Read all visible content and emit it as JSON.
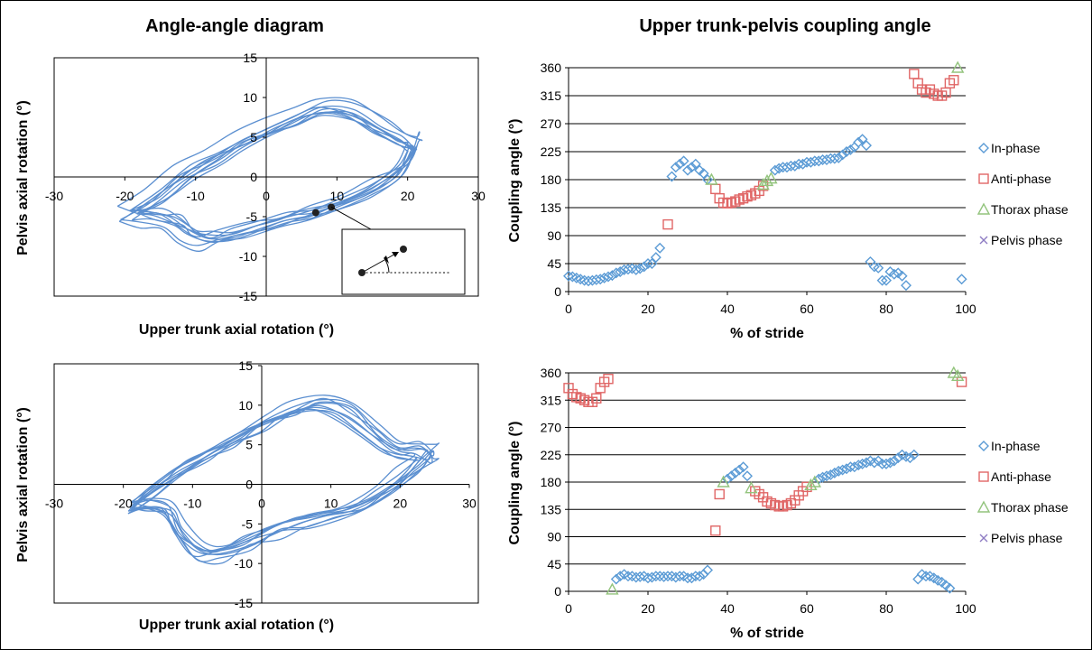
{
  "panel_titles": {
    "left": "Angle-angle diagram",
    "right": "Upper trunk-pelvis coupling angle"
  },
  "chart_data": [
    {
      "id": "aa_top",
      "type": "line",
      "xlabel": "Upper trunk axial rotation (°)",
      "ylabel": "Pelvis axial rotation (°)",
      "xlim": [
        -30,
        30
      ],
      "ylim": [
        -15,
        15
      ],
      "xticks": [
        -30,
        -20,
        -10,
        0,
        10,
        20,
        30
      ],
      "yticks": [
        -15,
        -10,
        -5,
        0,
        5,
        10,
        15
      ],
      "grid": false,
      "loop": {
        "upper": [
          [
            -20,
            -4.5
          ],
          [
            -16,
            -2.5
          ],
          [
            -12,
            0.5
          ],
          [
            -8,
            2.5
          ],
          [
            -4,
            4.5
          ],
          [
            0,
            6
          ],
          [
            4,
            7.5
          ],
          [
            8,
            9
          ],
          [
            12,
            8.5
          ],
          [
            16,
            6.5
          ],
          [
            19,
            5
          ],
          [
            21,
            4
          ]
        ],
        "lower": [
          [
            21,
            4
          ],
          [
            19,
            1
          ],
          [
            15,
            -1.5
          ],
          [
            10,
            -3.5
          ],
          [
            6,
            -4.5
          ],
          [
            2,
            -5.5
          ],
          [
            -2,
            -6.5
          ],
          [
            -6,
            -7.5
          ],
          [
            -9,
            -8
          ],
          [
            -12,
            -7
          ],
          [
            -14,
            -5.5
          ],
          [
            -17,
            -5
          ]
        ],
        "cycles": 10
      },
      "inset": {
        "points": [
          [
            7,
            -4.5
          ],
          [
            9.2,
            -3.8
          ]
        ]
      }
    },
    {
      "id": "aa_bottom",
      "type": "line",
      "xlabel": "Upper trunk axial rotation (°)",
      "ylabel": "Pelvis axial rotation (°)",
      "xlim": [
        -30,
        30
      ],
      "ylim": [
        -15,
        15
      ],
      "xticks": [
        -30,
        -20,
        -10,
        0,
        10,
        20,
        30
      ],
      "yticks": [
        -15,
        -10,
        -5,
        0,
        5,
        10,
        15
      ],
      "grid": false,
      "loop": {
        "upper": [
          [
            -19,
            -2.5
          ],
          [
            -16,
            -0.5
          ],
          [
            -12,
            2
          ],
          [
            -8,
            4
          ],
          [
            -4,
            6
          ],
          [
            0,
            8
          ],
          [
            4,
            9.5
          ],
          [
            8,
            10.5
          ],
          [
            12,
            9.5
          ],
          [
            16,
            7
          ],
          [
            19,
            5
          ],
          [
            22,
            4.5
          ],
          [
            24,
            4
          ]
        ],
        "lower": [
          [
            24,
            4
          ],
          [
            22,
            2
          ],
          [
            18,
            -0.5
          ],
          [
            14,
            -2.5
          ],
          [
            10,
            -3.5
          ],
          [
            6,
            -4.5
          ],
          [
            2,
            -5.5
          ],
          [
            -2,
            -7
          ],
          [
            -6,
            -8.5
          ],
          [
            -9,
            -8.5
          ],
          [
            -12,
            -6
          ],
          [
            -14,
            -3
          ],
          [
            -17,
            -2.5
          ]
        ],
        "cycles": 10
      }
    },
    {
      "id": "cp_top",
      "type": "scatter",
      "xlabel": "% of stride",
      "ylabel": "Coupling angle (°)",
      "xlim": [
        0,
        100
      ],
      "ylim": [
        0,
        360
      ],
      "xticks": [
        0,
        20,
        40,
        60,
        80,
        100
      ],
      "yticks": [
        0,
        45,
        90,
        135,
        180,
        225,
        270,
        315,
        360
      ],
      "grid": "horizontal",
      "legend": "right",
      "series": [
        {
          "name": "In-phase",
          "color": "#5b9bd5",
          "marker": "diamond",
          "x": [
            0,
            1,
            2,
            3,
            4,
            5,
            6,
            7,
            8,
            9,
            10,
            11,
            12,
            13,
            14,
            15,
            16,
            17,
            18,
            19,
            20,
            21,
            22,
            23,
            26,
            27,
            28,
            29,
            30,
            31,
            32,
            33,
            34,
            35,
            52,
            53,
            54,
            55,
            56,
            57,
            58,
            59,
            60,
            61,
            62,
            63,
            64,
            65,
            66,
            67,
            68,
            69,
            70,
            71,
            72,
            73,
            74,
            75,
            76,
            77,
            78,
            79,
            80,
            81,
            82,
            83,
            84,
            85,
            99
          ],
          "y": [
            25,
            24,
            22,
            20,
            18,
            17,
            18,
            19,
            20,
            22,
            24,
            26,
            30,
            32,
            35,
            36,
            37,
            35,
            37,
            40,
            45,
            45,
            55,
            70,
            185,
            200,
            205,
            210,
            195,
            200,
            205,
            195,
            190,
            180,
            195,
            198,
            200,
            200,
            202,
            202,
            205,
            205,
            208,
            208,
            210,
            210,
            212,
            212,
            214,
            214,
            215,
            220,
            225,
            228,
            232,
            240,
            245,
            235,
            48,
            40,
            38,
            18,
            18,
            32,
            28,
            30,
            25,
            10,
            20
          ]
        },
        {
          "name": "Anti-phase",
          "color": "#e06666",
          "marker": "square",
          "x": [
            25,
            37,
            38,
            39,
            40,
            41,
            42,
            43,
            44,
            45,
            46,
            47,
            48,
            49,
            87,
            88,
            89,
            90,
            91,
            92,
            93,
            94,
            95,
            96,
            97
          ],
          "y": [
            108,
            165,
            150,
            143,
            142,
            143,
            145,
            148,
            150,
            153,
            155,
            158,
            162,
            170,
            350,
            335,
            325,
            320,
            325,
            318,
            315,
            315,
            320,
            335,
            340
          ]
        },
        {
          "name": "Thorax phase",
          "color": "#93c47d",
          "marker": "triangle",
          "x": [
            36,
            49,
            50,
            51,
            98
          ],
          "y": [
            180,
            172,
            178,
            182,
            360
          ]
        },
        {
          "name": "Pelvis phase",
          "color": "#8e7cc3",
          "marker": "x",
          "x": [],
          "y": []
        }
      ]
    },
    {
      "id": "cp_bottom",
      "type": "scatter",
      "xlabel": "% of stride",
      "ylabel": "Coupling angle (°)",
      "xlim": [
        0,
        100
      ],
      "ylim": [
        0,
        360
      ],
      "xticks": [
        0,
        20,
        40,
        60,
        80,
        100
      ],
      "yticks": [
        0,
        45,
        90,
        135,
        180,
        225,
        270,
        315,
        360
      ],
      "grid": "horizontal",
      "legend": "right",
      "series": [
        {
          "name": "In-phase",
          "color": "#5b9bd5",
          "marker": "diamond",
          "x": [
            12,
            13,
            14,
            15,
            16,
            17,
            18,
            19,
            20,
            21,
            22,
            23,
            24,
            25,
            26,
            27,
            28,
            29,
            30,
            31,
            32,
            33,
            34,
            35,
            40,
            41,
            42,
            43,
            44,
            45,
            63,
            64,
            65,
            66,
            67,
            68,
            69,
            70,
            71,
            72,
            73,
            74,
            75,
            76,
            77,
            78,
            79,
            80,
            81,
            82,
            83,
            84,
            85,
            86,
            87,
            88,
            89,
            90,
            91,
            92,
            93,
            94,
            95,
            96
          ],
          "y": [
            20,
            25,
            28,
            25,
            25,
            23,
            24,
            25,
            22,
            23,
            25,
            25,
            24,
            25,
            25,
            23,
            25,
            25,
            22,
            22,
            25,
            25,
            28,
            35,
            185,
            190,
            195,
            200,
            205,
            190,
            185,
            188,
            190,
            192,
            195,
            198,
            200,
            202,
            205,
            205,
            208,
            210,
            212,
            215,
            212,
            215,
            210,
            210,
            212,
            215,
            220,
            225,
            222,
            220,
            225,
            20,
            28,
            25,
            25,
            22,
            18,
            15,
            10,
            5
          ]
        },
        {
          "name": "Anti-phase",
          "color": "#e06666",
          "marker": "square",
          "x": [
            0,
            1,
            2,
            3,
            4,
            5,
            6,
            7,
            8,
            9,
            10,
            37,
            38,
            47,
            48,
            49,
            50,
            51,
            52,
            53,
            54,
            55,
            56,
            57,
            58,
            59,
            60,
            99
          ],
          "y": [
            335,
            325,
            320,
            318,
            315,
            312,
            312,
            318,
            335,
            345,
            350,
            100,
            160,
            165,
            160,
            155,
            148,
            145,
            142,
            140,
            140,
            142,
            145,
            150,
            158,
            165,
            172,
            345
          ]
        },
        {
          "name": "Thorax phase",
          "color": "#93c47d",
          "marker": "triangle",
          "x": [
            11,
            39,
            46,
            61,
            62,
            97,
            98
          ],
          "y": [
            3,
            180,
            170,
            175,
            180,
            360,
            355
          ]
        },
        {
          "name": "Pelvis phase",
          "color": "#8e7cc3",
          "marker": "x",
          "x": [],
          "y": []
        }
      ]
    }
  ]
}
